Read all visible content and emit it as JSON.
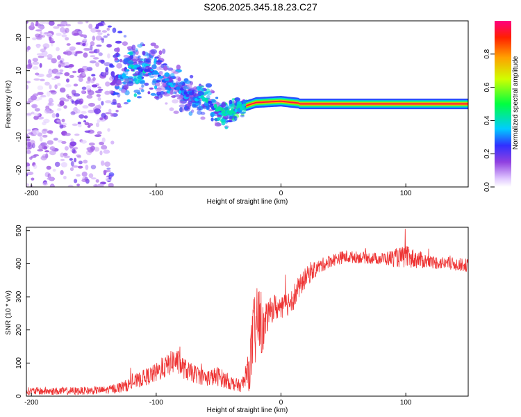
{
  "title": "S206.2025.345.18.23.C27",
  "chart_data": [
    {
      "type": "heatmap",
      "xlabel": "Height of straight line (km)",
      "ylabel": "Frequency (Hz)",
      "xlim": [
        -204,
        150
      ],
      "ylim": [
        -25,
        25
      ],
      "xticks": [
        -200,
        -100,
        0,
        100
      ],
      "yticks": [
        -20,
        -10,
        0,
        10,
        20
      ],
      "colorbar": {
        "label": "Normalized spectral amplitude",
        "range": [
          0,
          1
        ],
        "ticks": [
          "0.0",
          "0.2",
          "0.4",
          "0.6",
          "0.8"
        ]
      },
      "description_points": [
        {
          "x": -200,
          "f_center": 0,
          "spread": 25,
          "amp": 0.12
        },
        {
          "x": -140,
          "f_center": 5,
          "spread": 18,
          "amp": 0.15
        },
        {
          "x": -120,
          "f_center": 11,
          "spread": 8,
          "amp": 0.3
        },
        {
          "x": -100,
          "f_center": 9,
          "spread": 7,
          "amp": 0.25
        },
        {
          "x": -80,
          "f_center": 4,
          "spread": 6,
          "amp": 0.25
        },
        {
          "x": -60,
          "f_center": 1,
          "spread": 5,
          "amp": 0.3
        },
        {
          "x": -45,
          "f_center": -3,
          "spread": 4,
          "amp": 0.35
        },
        {
          "x": -30,
          "f_center": -1,
          "spread": 2,
          "amp": 0.4
        },
        {
          "x": -20,
          "f_center": 0.5,
          "spread": 1,
          "amp": 0.75
        },
        {
          "x": 0,
          "f_center": 1,
          "spread": 1,
          "amp": 0.8
        },
        {
          "x": 20,
          "f_center": 0,
          "spread": 0.6,
          "amp": 0.95
        },
        {
          "x": 100,
          "f_center": 0,
          "spread": 0.6,
          "amp": 0.95
        },
        {
          "x": 150,
          "f_center": 0,
          "spread": 0.6,
          "amp": 0.95
        }
      ]
    },
    {
      "type": "line",
      "xlabel": "Height of straight line (km)",
      "ylabel": "SNR (10 * v/v)",
      "xlim": [
        -204,
        150
      ],
      "ylim": [
        0,
        510
      ],
      "xticks": [
        -200,
        -100,
        0,
        100
      ],
      "yticks": [
        0,
        100,
        200,
        300,
        400,
        500
      ],
      "series": [
        {
          "name": "SNR",
          "color": "#ee3333",
          "x": [
            -204,
            -180,
            -160,
            -140,
            -125,
            -110,
            -100,
            -90,
            -85,
            -75,
            -60,
            -50,
            -40,
            -32,
            -26,
            -22,
            -18,
            -14,
            -10,
            -5,
            0,
            5,
            10,
            15,
            20,
            30,
            40,
            50,
            60,
            80,
            100,
            120,
            150
          ],
          "y": [
            15,
            15,
            16,
            18,
            30,
            55,
            70,
            95,
            110,
            75,
            55,
            60,
            40,
            30,
            70,
            180,
            230,
            200,
            250,
            270,
            260,
            280,
            300,
            330,
            360,
            390,
            410,
            420,
            420,
            415,
            420,
            405,
            395
          ],
          "noise": [
            12,
            12,
            12,
            12,
            18,
            25,
            30,
            35,
            40,
            30,
            25,
            30,
            22,
            18,
            60,
            120,
            110,
            70,
            40,
            40,
            35,
            40,
            40,
            35,
            30,
            22,
            20,
            20,
            18,
            18,
            35,
            20,
            20
          ]
        }
      ]
    }
  ]
}
